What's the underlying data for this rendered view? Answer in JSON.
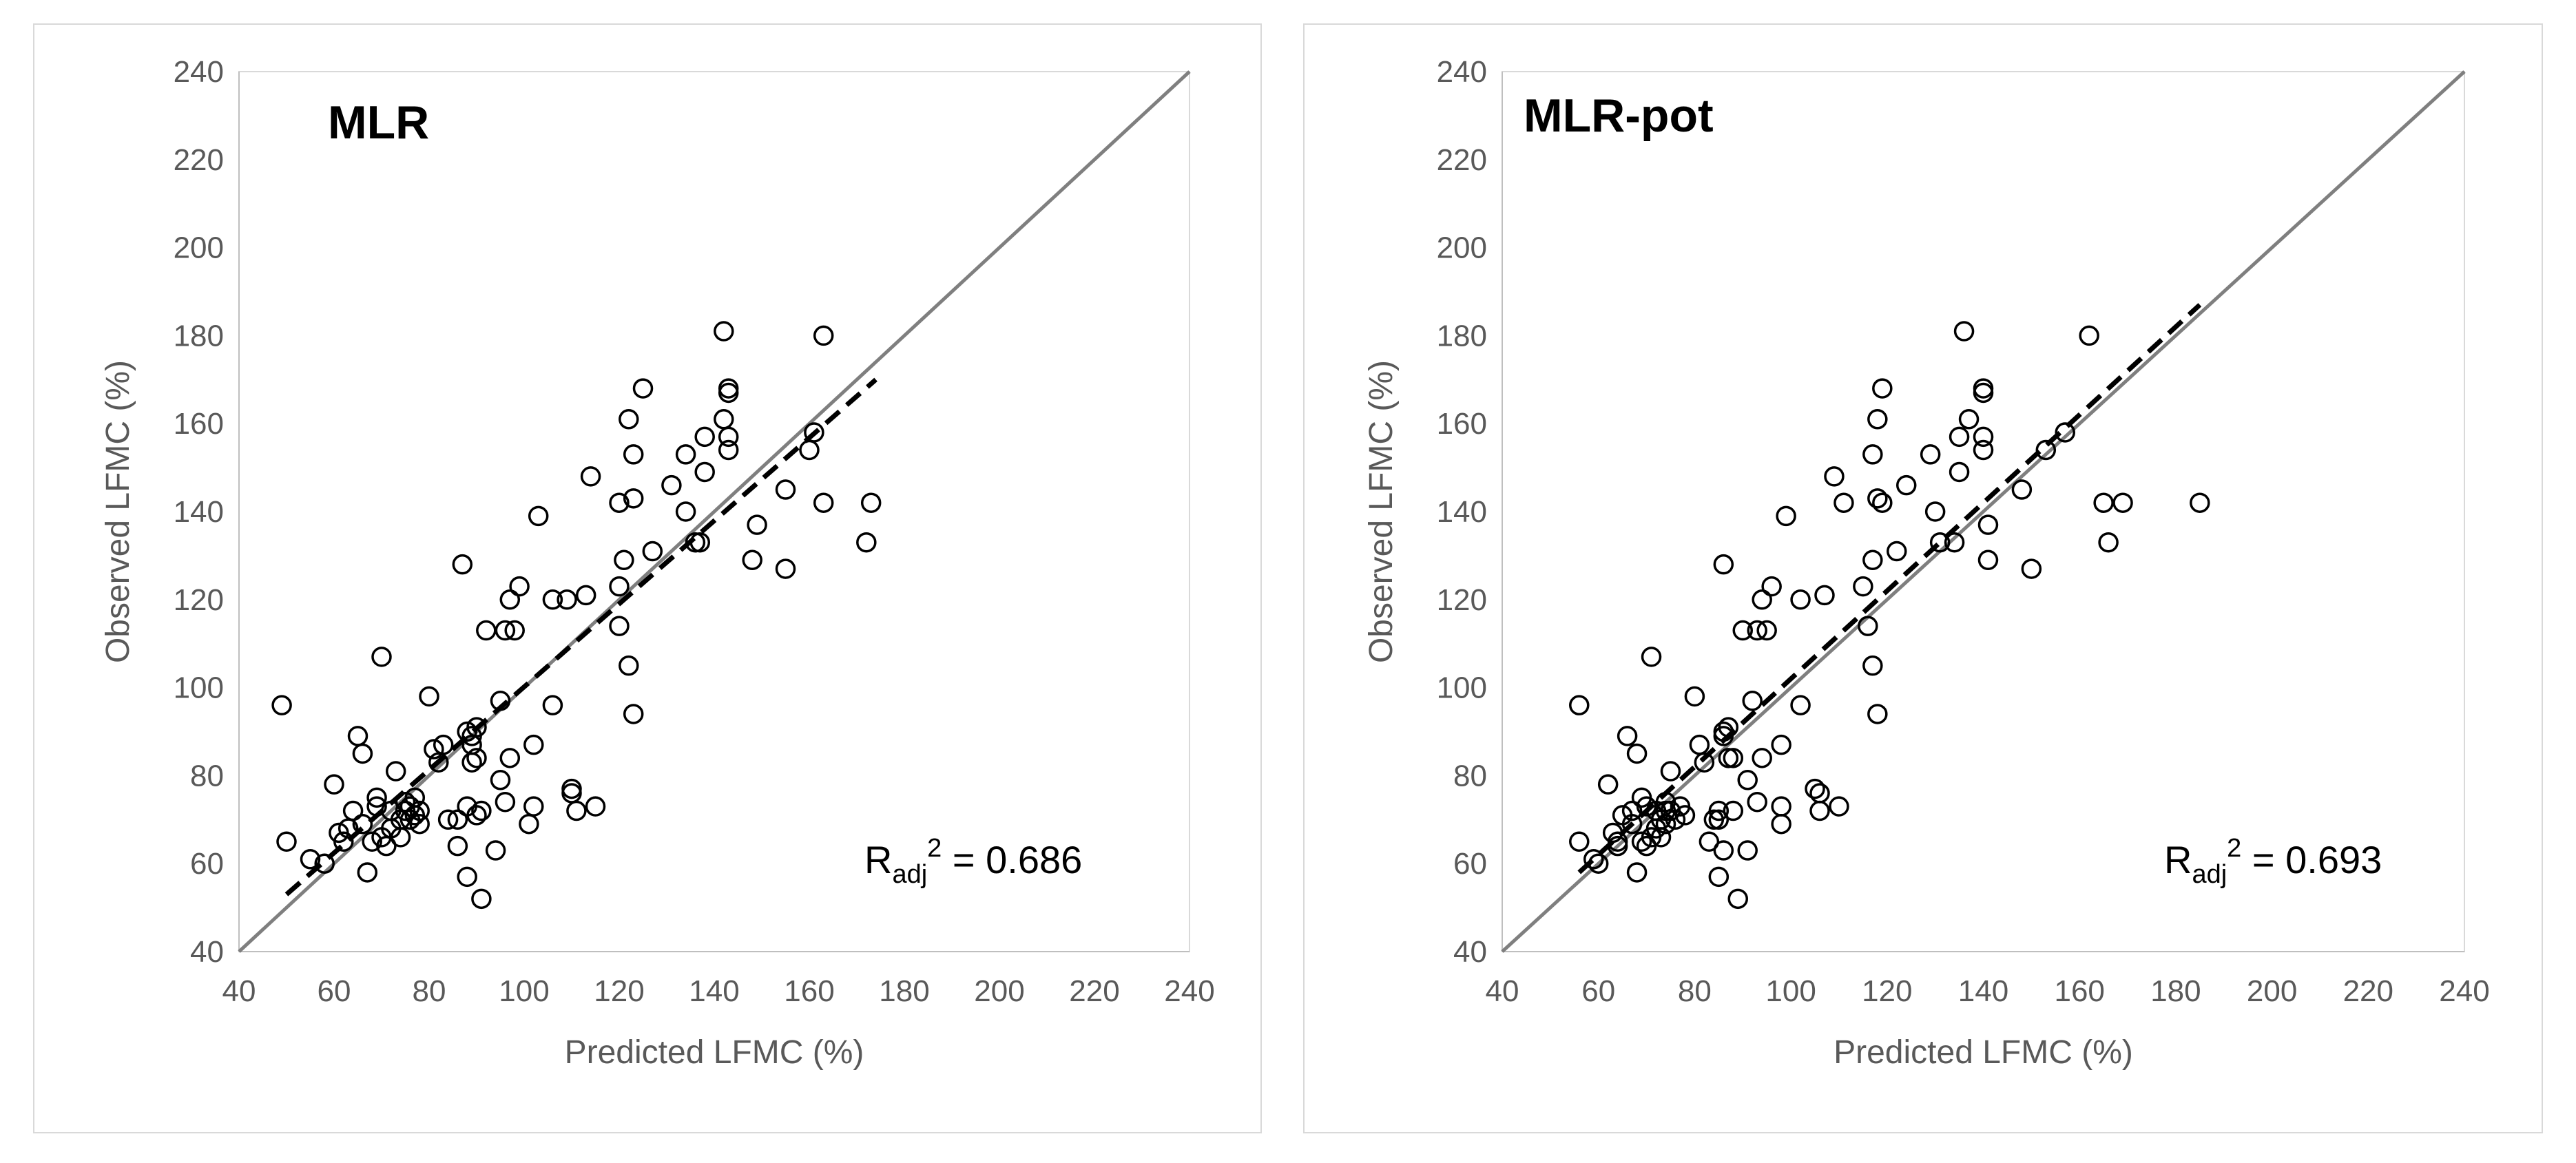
{
  "chart_data": [
    {
      "type": "scatter",
      "title": "MLR",
      "xlabel": "Predicted LFMC (%)",
      "ylabel": "Observed LFMC (%)",
      "xlim": [
        40,
        240
      ],
      "ylim": [
        40,
        240
      ],
      "ticks": [
        40,
        60,
        80,
        100,
        120,
        140,
        160,
        180,
        200,
        220,
        240
      ],
      "grid": false,
      "one_to_one_line": true,
      "fit_line": {
        "x": [
          50,
          174
        ],
        "y": [
          53,
          170
        ]
      },
      "annotation": {
        "base": "R",
        "sub": "adj",
        "sup": "2",
        "value": " = 0.686"
      },
      "points": {
        "x": [
          49,
          50,
          55,
          58,
          60,
          61,
          62,
          63,
          64,
          65,
          66,
          66,
          67,
          68,
          69,
          69,
          70,
          70,
          71,
          72,
          72,
          73,
          74,
          74,
          75,
          75,
          76,
          76,
          77,
          77,
          78,
          78,
          80,
          81,
          82,
          83,
          84,
          86,
          86,
          87,
          88,
          88,
          88,
          89,
          89,
          89,
          90,
          90,
          90,
          91,
          91,
          92,
          94,
          95,
          95,
          96,
          96,
          97,
          97,
          98,
          99,
          101,
          102,
          102,
          103,
          106,
          106,
          109,
          110,
          110,
          111,
          113,
          114,
          115,
          120,
          120,
          120,
          121,
          122,
          122,
          123,
          123,
          123,
          125,
          127,
          131,
          134,
          134,
          136,
          137,
          138,
          138,
          142,
          142,
          143,
          143,
          143,
          143,
          148,
          149,
          155,
          155,
          160,
          161,
          163,
          163,
          172,
          173
        ],
        "y": [
          96,
          65,
          61,
          60,
          78,
          67,
          65,
          68,
          72,
          89,
          85,
          69,
          58,
          65,
          75,
          73,
          107,
          66,
          64,
          72,
          68,
          81,
          70,
          66,
          74,
          72,
          73,
          70,
          75,
          71,
          69,
          72,
          98,
          86,
          83,
          87,
          70,
          64,
          70,
          128,
          73,
          57,
          90,
          89,
          87,
          83,
          91,
          84,
          71,
          72,
          52,
          113,
          63,
          79,
          97,
          113,
          74,
          84,
          120,
          113,
          123,
          69,
          73,
          87,
          139,
          96,
          120,
          120,
          77,
          76,
          72,
          121,
          148,
          73,
          142,
          123,
          114,
          129,
          105,
          161,
          94,
          153,
          143,
          168,
          131,
          146,
          153,
          140,
          133,
          133,
          157,
          149,
          181,
          161,
          167,
          157,
          154,
          168,
          129,
          137,
          145,
          127,
          154,
          158,
          180,
          142,
          133,
          142
        ]
      }
    },
    {
      "type": "scatter",
      "title": "MLR-pot",
      "xlabel": "Predicted LFMC (%)",
      "ylabel": "Observed LFMC (%)",
      "xlim": [
        40,
        240
      ],
      "ylim": [
        40,
        240
      ],
      "ticks": [
        40,
        60,
        80,
        100,
        120,
        140,
        160,
        180,
        200,
        220,
        240
      ],
      "grid": false,
      "one_to_one_line": true,
      "fit_line": {
        "x": [
          56,
          185
        ],
        "y": [
          58,
          187
        ]
      },
      "annotation": {
        "base": "R",
        "sub": "adj",
        "sup": "2",
        "value": " = 0.693"
      },
      "points": {
        "x": [
          56,
          56,
          59,
          60,
          62,
          63,
          64,
          64,
          65,
          66,
          67,
          67,
          68,
          68,
          69,
          69,
          70,
          70,
          71,
          71,
          72,
          72,
          73,
          73,
          74,
          74,
          74,
          75,
          75,
          76,
          77,
          78,
          80,
          81,
          82,
          83,
          84,
          85,
          85,
          85,
          86,
          86,
          86,
          86,
          87,
          87,
          88,
          88,
          89,
          90,
          91,
          91,
          92,
          93,
          93,
          94,
          94,
          95,
          96,
          98,
          98,
          98,
          99,
          102,
          102,
          105,
          106,
          106,
          107,
          109,
          110,
          111,
          115,
          116,
          117,
          117,
          117,
          118,
          118,
          118,
          119,
          119,
          122,
          124,
          129,
          130,
          131,
          134,
          135,
          135,
          136,
          137,
          140,
          140,
          140,
          140,
          141,
          141,
          148,
          150,
          153,
          157,
          162,
          165,
          166,
          169,
          185
        ],
        "y": [
          96,
          65,
          61,
          60,
          78,
          67,
          65,
          64,
          71,
          89,
          72,
          69,
          85,
          58,
          75,
          65,
          64,
          73,
          107,
          66,
          68,
          72,
          70,
          66,
          74,
          72,
          69,
          81,
          72,
          70,
          73,
          71,
          98,
          87,
          83,
          65,
          70,
          72,
          70,
          57,
          128,
          63,
          90,
          89,
          91,
          84,
          84,
          72,
          52,
          113,
          63,
          79,
          97,
          113,
          74,
          84,
          120,
          113,
          123,
          73,
          69,
          87,
          139,
          96,
          120,
          77,
          76,
          72,
          121,
          148,
          73,
          142,
          123,
          114,
          153,
          129,
          105,
          161,
          94,
          143,
          142,
          168,
          131,
          146,
          153,
          140,
          133,
          133,
          157,
          149,
          181,
          161,
          167,
          157,
          154,
          168,
          129,
          137,
          145,
          127,
          154,
          158,
          180,
          142,
          133,
          142,
          142
        ]
      }
    }
  ]
}
